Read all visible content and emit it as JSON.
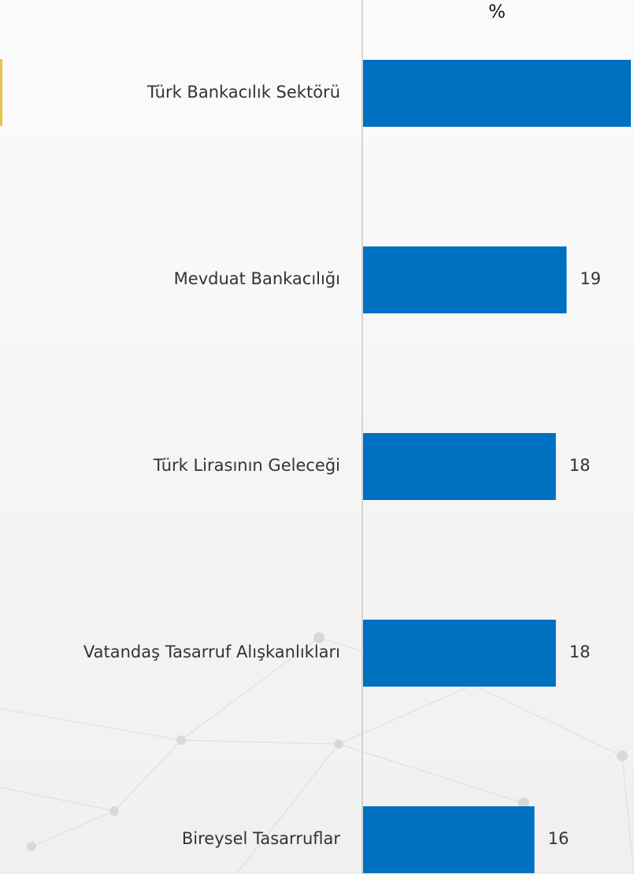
{
  "chart_data": {
    "type": "bar",
    "orientation": "horizontal",
    "title": "%",
    "categories": [
      "Türk Bankacılık Sektörü",
      "Mevduat Bankacılığı",
      "Türk Lirasının Geleceği",
      "Vatandaş Tasarruf Alışkanlıkları",
      "Bireysel Tasarruflar"
    ],
    "values": [
      25,
      19,
      18,
      18,
      16
    ],
    "color": "#0070c0",
    "xlim": [
      0,
      25
    ]
  }
}
